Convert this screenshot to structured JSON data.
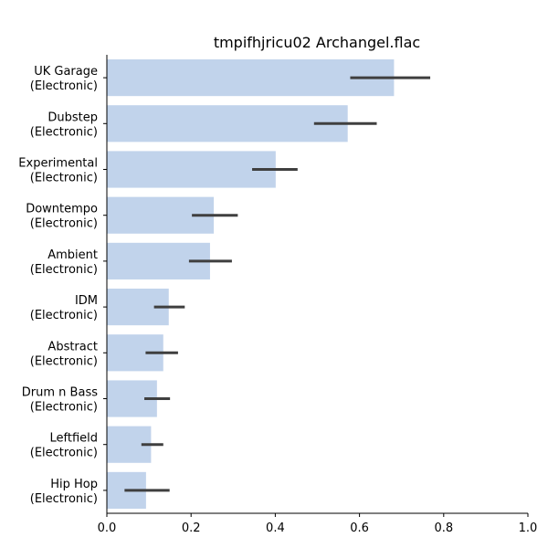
{
  "chart_data": {
    "type": "bar",
    "orientation": "horizontal",
    "title": "tmpifhjricu02 Archangel.flac",
    "xlabel": "",
    "ylabel": "",
    "xlim": [
      0,
      1.0
    ],
    "xticks": [
      "0.0",
      "0.2",
      "0.4",
      "0.6",
      "0.8",
      "1.0"
    ],
    "bar_color": "#c1d3eb",
    "errorbar_color": "#3f3f3f",
    "grid": false,
    "categories": [
      {
        "line1": "UK Garage",
        "line2": "(Electronic)"
      },
      {
        "line1": "Dubstep",
        "line2": "(Electronic)"
      },
      {
        "line1": "Experimental",
        "line2": "(Electronic)"
      },
      {
        "line1": "Downtempo",
        "line2": "(Electronic)"
      },
      {
        "line1": "Ambient",
        "line2": "(Electronic)"
      },
      {
        "line1": "IDM",
        "line2": "(Electronic)"
      },
      {
        "line1": "Abstract",
        "line2": "(Electronic)"
      },
      {
        "line1": "Drum n Bass",
        "line2": "(Electronic)"
      },
      {
        "line1": "Leftfield",
        "line2": "(Electronic)"
      },
      {
        "line1": "Hip Hop",
        "line2": "(Electronic)"
      }
    ],
    "values": [
      0.682,
      0.572,
      0.401,
      0.254,
      0.245,
      0.147,
      0.134,
      0.119,
      0.105,
      0.093
    ],
    "error_low": [
      0.578,
      0.492,
      0.345,
      0.202,
      0.195,
      0.112,
      0.092,
      0.089,
      0.082,
      0.042
    ],
    "error_high": [
      0.768,
      0.641,
      0.453,
      0.311,
      0.297,
      0.185,
      0.169,
      0.15,
      0.134,
      0.149
    ]
  }
}
